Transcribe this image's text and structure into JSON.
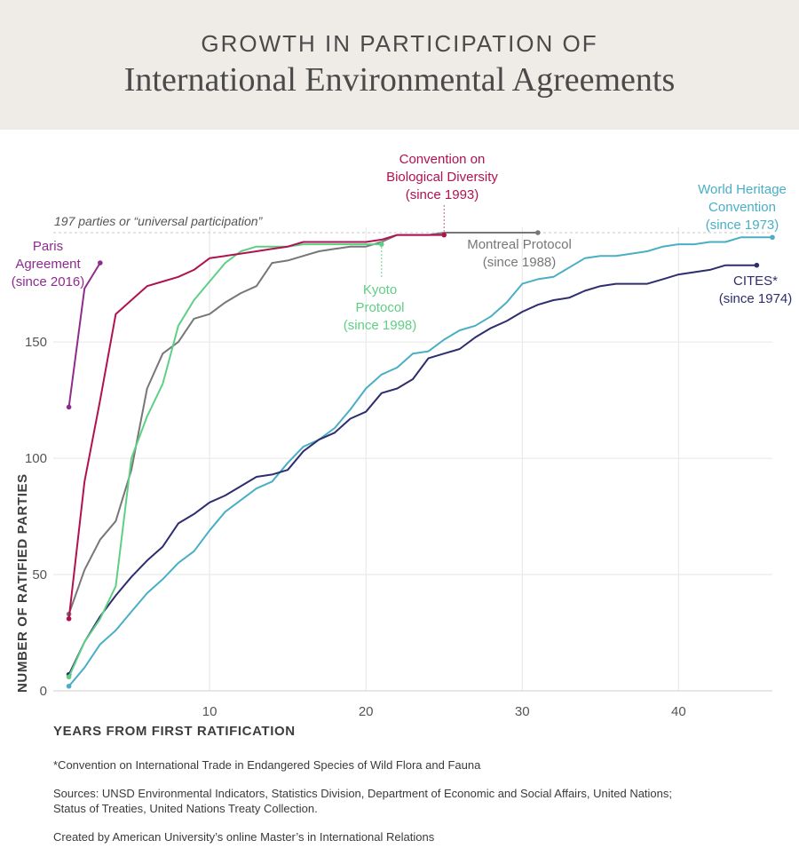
{
  "header": {
    "title_top": "GROWTH IN PARTICIPATION OF",
    "title_main": "International Environmental Agreements"
  },
  "axes": {
    "xlabel": "YEARS FROM FIRST RATIFICATION",
    "ylabel": "NUMBER OF RATIFIED PARTIES"
  },
  "footnotes": {
    "cites_note": "*Convention on International Trade in Endangered Species of Wild Flora and Fauna",
    "sources": "Sources: UNSD Environmental Indicators, Statistics Division, Department of Economic and Social Affairs, United Nations; Status of Treaties, United Nations Treaty Collection.",
    "credit": "Created by American University’s online Master’s in International Relations"
  },
  "chart_data": {
    "type": "line",
    "xlabel": "YEARS FROM FIRST RATIFICATION",
    "ylabel": "NUMBER OF RATIFIED PARTIES",
    "xlim": [
      0,
      46
    ],
    "ylim": [
      0,
      197
    ],
    "xticks": [
      10,
      20,
      30,
      40
    ],
    "yticks": [
      0,
      50,
      100,
      150
    ],
    "grid": true,
    "reference_line": {
      "y": 197,
      "label": "197 parties or “universal participation”"
    },
    "series": [
      {
        "name": "Paris Agreement (since 2016)",
        "label_lines": [
          "Paris",
          "Agreement",
          "(since 2016)"
        ],
        "color": "#8e2c8e",
        "x": [
          1,
          2,
          3
        ],
        "y": [
          122,
          173,
          184
        ]
      },
      {
        "name": "Convention on Biological Diversity (since 1993)",
        "label_lines": [
          "Convention on",
          "Biological Diversity",
          "(since 1993)"
        ],
        "color": "#b0124f",
        "x": [
          1,
          2,
          3,
          4,
          5,
          6,
          7,
          8,
          9,
          10,
          11,
          12,
          13,
          14,
          15,
          16,
          17,
          18,
          19,
          20,
          21,
          22,
          23,
          24,
          25
        ],
        "y": [
          31,
          90,
          125,
          162,
          168,
          174,
          176,
          178,
          181,
          186,
          187,
          188,
          189,
          190,
          191,
          193,
          193,
          193,
          193,
          193,
          194,
          196,
          196,
          196,
          196
        ]
      },
      {
        "name": "Kyoto Protocol (since 1998)",
        "label_lines": [
          "Kyoto",
          "Protocol",
          "(since 1998)"
        ],
        "color": "#5fcf86",
        "x": [
          1,
          2,
          3,
          4,
          5,
          6,
          7,
          8,
          9,
          10,
          11,
          12,
          13,
          14,
          15,
          16,
          17,
          18,
          19,
          20,
          21
        ],
        "y": [
          6,
          21,
          31,
          45,
          100,
          118,
          132,
          157,
          168,
          176,
          184,
          189,
          191,
          191,
          191,
          192,
          192,
          192,
          192,
          192,
          192
        ]
      },
      {
        "name": "Montreal Protocol (since 1988)",
        "label_lines": [
          "Montreal Protocol",
          "(since 1988)"
        ],
        "color": "#777777",
        "x": [
          1,
          2,
          3,
          4,
          5,
          6,
          7,
          8,
          9,
          10,
          11,
          12,
          13,
          14,
          15,
          16,
          17,
          18,
          19,
          20,
          21,
          22,
          23,
          24,
          25,
          26,
          27,
          28,
          29,
          30,
          31
        ],
        "y": [
          33,
          52,
          65,
          73,
          95,
          130,
          145,
          150,
          160,
          162,
          167,
          171,
          174,
          184,
          185,
          187,
          189,
          190,
          191,
          191,
          193,
          196,
          196,
          196,
          197,
          197,
          197,
          197,
          197,
          197,
          197
        ]
      },
      {
        "name": "World Heritage Convention (since 1973)",
        "label_lines": [
          "World Heritage",
          "Convention",
          "(since 1973)"
        ],
        "color": "#4aaec5",
        "x": [
          1,
          2,
          3,
          4,
          5,
          6,
          7,
          8,
          9,
          10,
          11,
          12,
          13,
          14,
          15,
          16,
          17,
          18,
          19,
          20,
          21,
          22,
          23,
          24,
          25,
          26,
          27,
          28,
          29,
          30,
          31,
          32,
          33,
          34,
          35,
          36,
          37,
          38,
          39,
          40,
          41,
          42,
          43,
          44,
          45,
          46
        ],
        "y": [
          2,
          10,
          20,
          26,
          34,
          42,
          48,
          55,
          60,
          69,
          77,
          82,
          87,
          90,
          98,
          105,
          108,
          113,
          121,
          130,
          136,
          139,
          145,
          146,
          151,
          155,
          157,
          161,
          167,
          175,
          177,
          178,
          182,
          186,
          187,
          187,
          188,
          189,
          191,
          192,
          192,
          193,
          193,
          195,
          195,
          195
        ]
      },
      {
        "name": "CITES* (since 1974)",
        "label_lines": [
          "CITES*",
          "(since 1974)"
        ],
        "color": "#2e2d6e",
        "x": [
          1,
          2,
          3,
          4,
          5,
          6,
          7,
          8,
          9,
          10,
          11,
          12,
          13,
          14,
          15,
          16,
          17,
          18,
          19,
          20,
          21,
          22,
          23,
          24,
          25,
          26,
          27,
          28,
          29,
          30,
          31,
          32,
          33,
          34,
          35,
          36,
          37,
          38,
          39,
          40,
          41,
          42,
          43,
          44,
          45
        ],
        "y": [
          7,
          21,
          32,
          41,
          49,
          56,
          62,
          72,
          76,
          81,
          84,
          88,
          92,
          93,
          95,
          103,
          108,
          111,
          117,
          120,
          128,
          130,
          134,
          143,
          145,
          147,
          152,
          156,
          159,
          163,
          166,
          168,
          169,
          172,
          174,
          175,
          175,
          175,
          177,
          179,
          180,
          181,
          183,
          183,
          183
        ]
      }
    ]
  }
}
